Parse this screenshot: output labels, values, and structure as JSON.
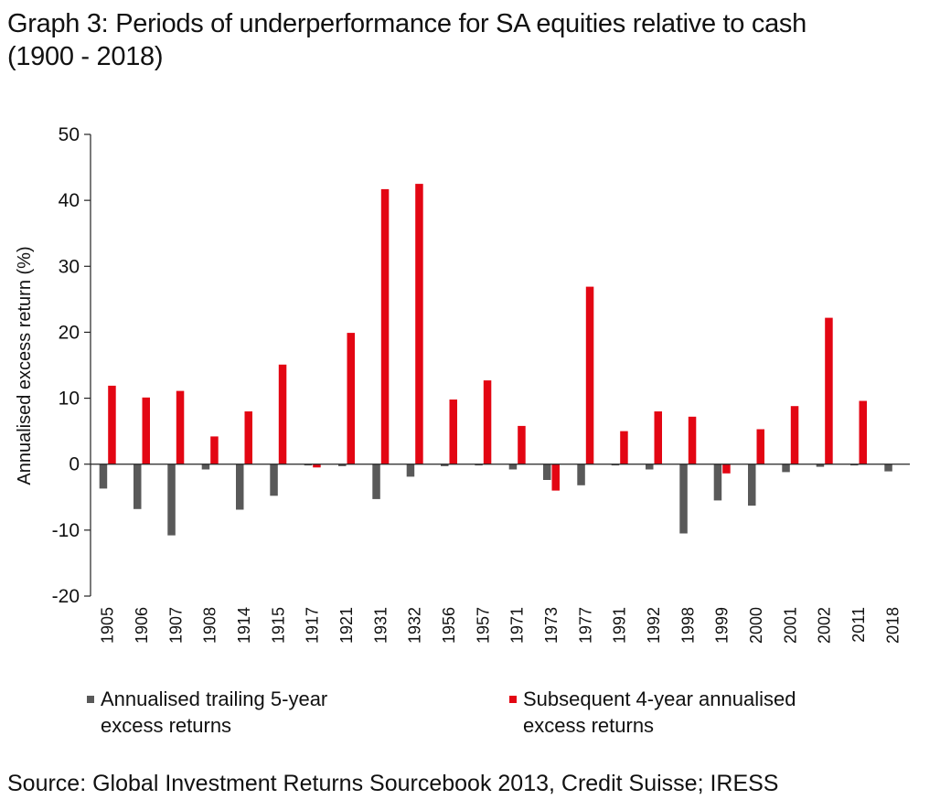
{
  "title_line1": "Graph 3: Periods of underperformance for SA equities relative to cash",
  "title_line2": "(1900 - 2018)",
  "source": "Source: Global Investment Returns Sourcebook 2013, Credit Suisse; IRESS",
  "colors": {
    "trailing": "#595959",
    "subsequent": "#e30613",
    "axis": "#222222"
  },
  "legend": [
    {
      "line1": "Annualised trailing 5-year",
      "line2": "excess returns"
    },
    {
      "line1": "Subsequent 4-year annualised",
      "line2": "excess returns"
    }
  ],
  "chart_data": {
    "type": "bar",
    "title": "Graph 3: Periods of underperformance for SA equities relative to cash (1900 - 2018)",
    "xlabel": "",
    "ylabel": "Annualised excess return (%)",
    "ylim": [
      -20,
      50
    ],
    "yticks": [
      "50",
      "40",
      "30",
      "20",
      "10",
      "0",
      "-10",
      "-20"
    ],
    "ytick_values": [
      50,
      40,
      30,
      20,
      10,
      0,
      -10,
      -20
    ],
    "grid": false,
    "legend_position": "bottom",
    "categories": [
      "1905",
      "1906",
      "1907",
      "1908",
      "1914",
      "1915",
      "1917",
      "1921",
      "1931",
      "1932",
      "1956",
      "1957",
      "1971",
      "1973",
      "1977",
      "1991",
      "1992",
      "1998",
      "1999",
      "2000",
      "2001",
      "2002",
      "2011",
      "2018"
    ],
    "series": [
      {
        "name": "Annualised trailing 5-year excess returns",
        "values": [
          -3.7,
          -6.8,
          -10.8,
          -0.8,
          -6.9,
          -4.8,
          -0.2,
          -0.3,
          -5.3,
          -1.9,
          -0.3,
          -0.2,
          -0.8,
          -2.4,
          -3.2,
          -0.2,
          -0.8,
          -10.5,
          -5.5,
          -6.3,
          -1.2,
          -0.4,
          -0.2,
          -1.1
        ]
      },
      {
        "name": "Subsequent 4-year annualised excess returns",
        "values": [
          11.9,
          10.1,
          11.1,
          4.2,
          8.0,
          15.1,
          -0.5,
          19.9,
          41.7,
          42.5,
          9.8,
          12.7,
          5.8,
          -4.0,
          26.9,
          5.0,
          8.0,
          7.2,
          -1.4,
          5.3,
          8.8,
          22.2,
          9.6,
          0
        ]
      }
    ]
  }
}
